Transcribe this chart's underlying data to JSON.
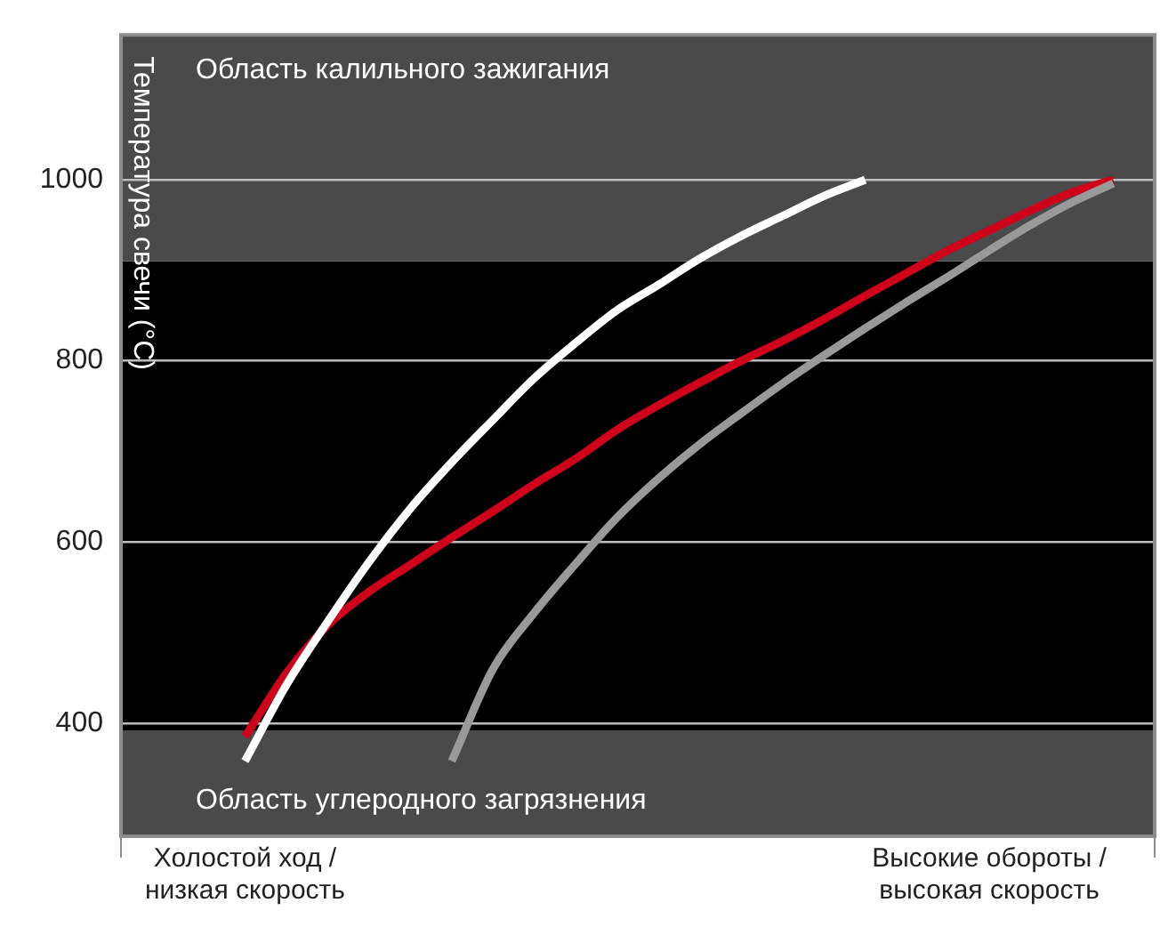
{
  "chart_data": {
    "type": "line",
    "ylabel": "Температура свечи (°C)",
    "categories": [
      null,
      null,
      null,
      "Холостой ход / низкая скорость",
      null,
      null,
      null,
      null,
      null,
      null,
      null,
      null,
      null,
      null,
      null,
      null,
      null,
      null,
      null,
      null,
      null,
      "Высокие обороты / высокая скорость",
      null,
      null,
      null,
      null
    ],
    "ylim": [
      275,
      1160
    ],
    "yticks": [
      400,
      600,
      800,
      1000
    ],
    "grid": "y",
    "legend": false,
    "marker": "none",
    "line_style": "solid",
    "bands": [
      {
        "axis": "y",
        "from": 392,
        "to": 910,
        "color": "#000000"
      },
      {
        "axis": "y",
        "from": 910,
        "to": 1160,
        "label": "Область калильного зажигания",
        "color": "#4a4a4a"
      },
      {
        "axis": "y",
        "from": 275,
        "to": 392,
        "label": "Область углеродного загрязнения",
        "color": "#4a4a4a"
      }
    ],
    "series": [
      {
        "color": "#ffffff",
        "values": [
          null,
          null,
          null,
          358,
          442,
          512,
          578,
          637,
          688,
          735,
          781,
          820,
          856,
          884,
          913,
          938,
          960,
          982,
          1000,
          null,
          null,
          null,
          null,
          null,
          null,
          null
        ]
      },
      {
        "color": "#999999",
        "values": [
          null,
          null,
          null,
          null,
          null,
          null,
          null,
          null,
          358,
          460,
          522,
          576,
          627,
          670,
          708,
          742,
          775,
          806,
          836,
          865,
          893,
          922,
          950,
          975,
          996,
          null
        ]
      },
      {
        "color": "#d0021b",
        "values": [
          null,
          null,
          null,
          385,
          455,
          508,
          545,
          575,
          605,
          634,
          664,
          692,
          724,
          751,
          776,
          800,
          822,
          846,
          872,
          897,
          922,
          944,
          966,
          986,
          1000,
          null
        ]
      }
    ]
  }
}
